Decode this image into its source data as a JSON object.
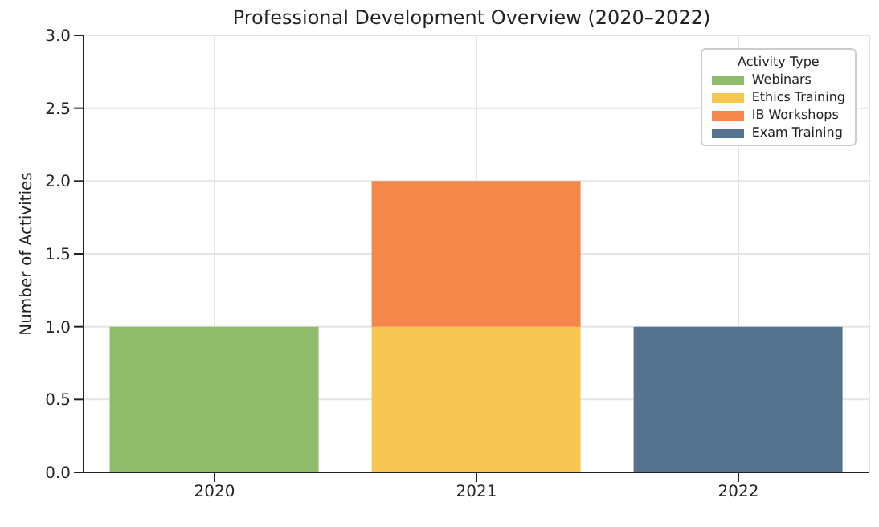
{
  "chart_data": {
    "type": "bar",
    "title": "Professional Development Overview (2020–2022)",
    "ylabel": "Number of Activities",
    "categories": [
      "2020",
      "2021",
      "2022"
    ],
    "stacked": true,
    "legend": "top right",
    "legend_title": "Activity Type",
    "grid": true,
    "ylim": [
      0,
      3
    ],
    "yticks": [
      {
        "value": 0,
        "label": "0.0"
      },
      {
        "value": 0.5,
        "label": "0.5"
      },
      {
        "value": 1,
        "label": "1.0"
      },
      {
        "value": 1.5,
        "label": "1.5"
      },
      {
        "value": 2,
        "label": "2.0"
      },
      {
        "value": 2.5,
        "label": "2.5"
      },
      {
        "value": 3,
        "label": "3.0"
      }
    ],
    "series": [
      {
        "name": "Webinars",
        "color": "#8fbc6a",
        "values": [
          1,
          null,
          null
        ]
      },
      {
        "name": "Ethics Training",
        "color": "#f7c653",
        "values": [
          null,
          1,
          null
        ]
      },
      {
        "name": "IB Workshops",
        "color": "#f5874a",
        "values": [
          null,
          1,
          null
        ]
      },
      {
        "name": "Exam Training",
        "color": "#55738f",
        "values": [
          null,
          null,
          1
        ]
      }
    ]
  }
}
